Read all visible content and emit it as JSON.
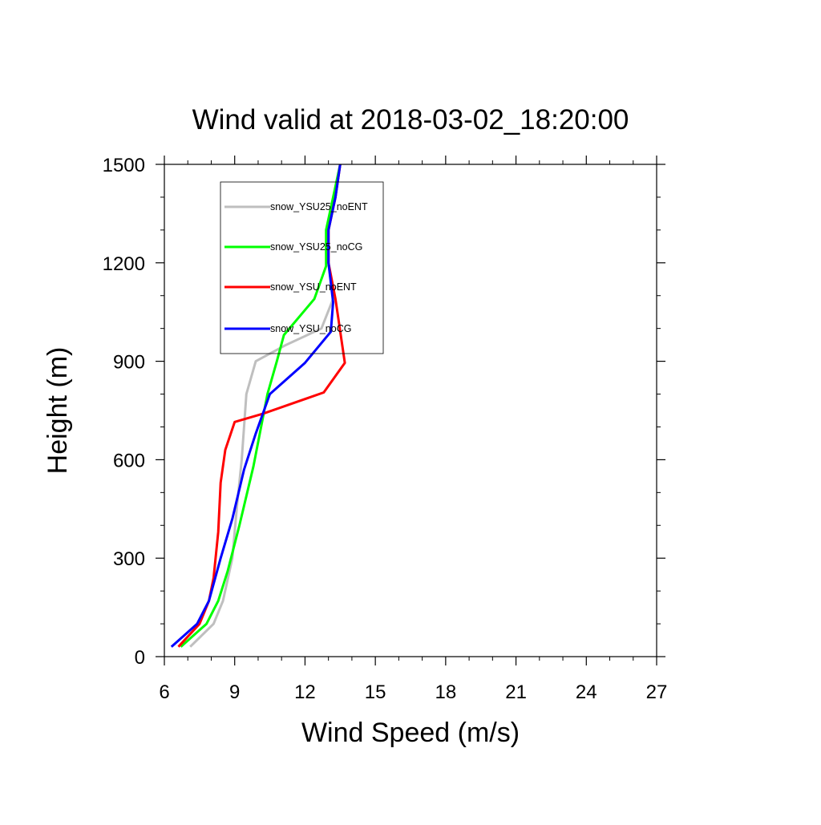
{
  "chart_data": {
    "type": "line",
    "title": "Wind valid at 2018-03-02_18:20:00",
    "xlabel": "Wind Speed (m/s)",
    "ylabel": "Height (m)",
    "xlim": [
      6,
      27
    ],
    "ylim": [
      0,
      1500
    ],
    "xticks": [
      6,
      9,
      12,
      15,
      18,
      21,
      24,
      27
    ],
    "yticks": [
      0,
      300,
      600,
      900,
      1200,
      1500
    ],
    "x_minor_step": 1,
    "y_minor_step": 100,
    "grid": false,
    "legend_position": "top-left",
    "series": [
      {
        "name": "snow_YSU25_noENT",
        "color": "#bfbfbf",
        "points": [
          [
            7.1,
            30
          ],
          [
            8.1,
            100
          ],
          [
            8.5,
            170
          ],
          [
            8.9,
            300
          ],
          [
            9.1,
            460
          ],
          [
            9.3,
            600
          ],
          [
            9.5,
            800
          ],
          [
            9.9,
            900
          ],
          [
            11.2,
            950
          ],
          [
            12.7,
            1000
          ],
          [
            13.2,
            1090
          ],
          [
            13.0,
            1200
          ],
          [
            13.0,
            1300
          ],
          [
            13.3,
            1400
          ],
          [
            13.5,
            1500
          ]
        ]
      },
      {
        "name": "snow_YSU25_noCG",
        "color": "#00ff00",
        "points": [
          [
            6.7,
            30
          ],
          [
            7.8,
            100
          ],
          [
            8.3,
            170
          ],
          [
            8.7,
            260
          ],
          [
            9.2,
            400
          ],
          [
            9.8,
            580
          ],
          [
            10.4,
            800
          ],
          [
            10.8,
            900
          ],
          [
            11.1,
            980
          ],
          [
            12.4,
            1090
          ],
          [
            12.9,
            1190
          ],
          [
            12.9,
            1300
          ],
          [
            13.2,
            1400
          ],
          [
            13.5,
            1500
          ]
        ]
      },
      {
        "name": "snow_YSU_noENT",
        "color": "#ff0000",
        "points": [
          [
            6.6,
            30
          ],
          [
            7.5,
            100
          ],
          [
            7.9,
            170
          ],
          [
            8.1,
            240
          ],
          [
            8.3,
            380
          ],
          [
            8.4,
            530
          ],
          [
            8.6,
            630
          ],
          [
            9.0,
            715
          ],
          [
            10.2,
            740
          ],
          [
            12.8,
            805
          ],
          [
            13.7,
            895
          ],
          [
            13.3,
            1090
          ],
          [
            13.0,
            1200
          ],
          [
            13.0,
            1300
          ],
          [
            13.3,
            1400
          ],
          [
            13.5,
            1500
          ]
        ]
      },
      {
        "name": "snow_YSU_noCG",
        "color": "#0000ff",
        "points": [
          [
            6.3,
            30
          ],
          [
            7.4,
            100
          ],
          [
            7.9,
            170
          ],
          [
            8.4,
            300
          ],
          [
            8.9,
            420
          ],
          [
            9.4,
            570
          ],
          [
            9.9,
            680
          ],
          [
            10.5,
            800
          ],
          [
            12.0,
            895
          ],
          [
            13.1,
            990
          ],
          [
            13.2,
            1080
          ],
          [
            13.0,
            1200
          ],
          [
            13.0,
            1300
          ],
          [
            13.3,
            1400
          ],
          [
            13.5,
            1500
          ]
        ]
      }
    ]
  }
}
